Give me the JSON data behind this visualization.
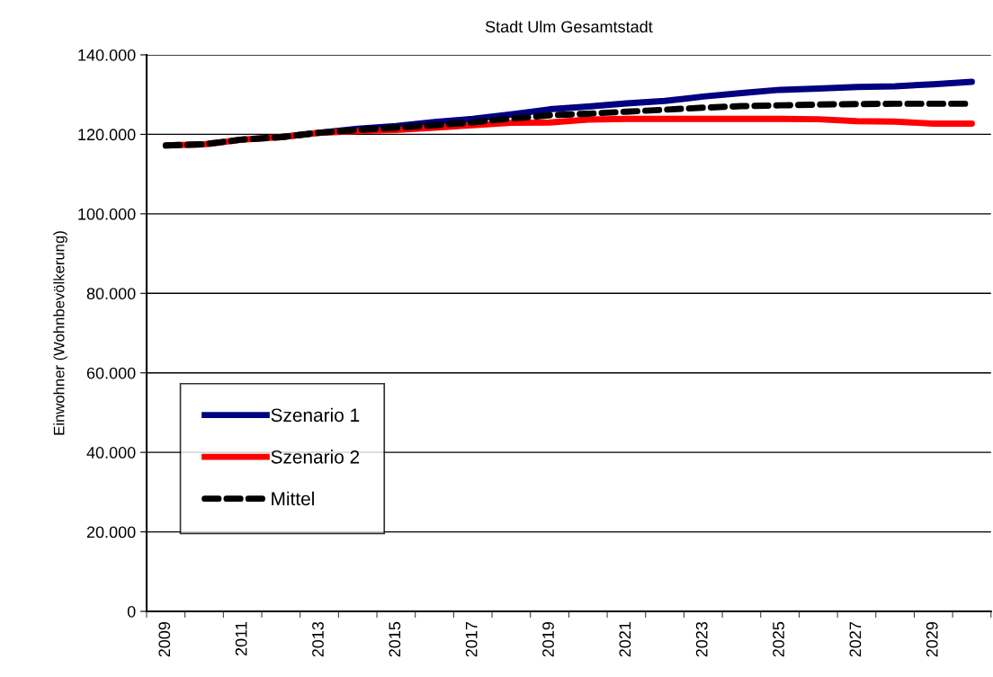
{
  "chart_data": {
    "type": "line",
    "title": "Stadt Ulm Gesamtstadt",
    "ylabel": "Einwohner (Wohnbevölkerung)",
    "categories": [
      "2009",
      null,
      "2011",
      null,
      "2013",
      null,
      "2015",
      null,
      "2017",
      null,
      "2019",
      null,
      "2021",
      null,
      "2023",
      null,
      "2025",
      null,
      "2027",
      null,
      "2029",
      null
    ],
    "series": [
      {
        "name": "Szenario 1",
        "color": "#000080",
        "line_style": "solid",
        "values": [
          null,
          null,
          null,
          119300,
          120400,
          121400,
          122100,
          123100,
          123900,
          125000,
          126300,
          127000,
          127800,
          128400,
          129500,
          130400,
          131200,
          131500,
          131900,
          132100,
          132600,
          133200
        ]
      },
      {
        "name": "Szenario 2",
        "color": "#ff0000",
        "line_style": "solid",
        "values": [
          117200,
          117500,
          118700,
          119300,
          120400,
          120800,
          121100,
          121700,
          122300,
          122900,
          123000,
          123700,
          123900,
          123900,
          123900,
          123900,
          123900,
          123800,
          123300,
          123200,
          122700,
          122700
        ]
      },
      {
        "name": "Mittel",
        "color": "#000000",
        "line_style": "dashed",
        "values": [
          117200,
          117500,
          118700,
          119300,
          120400,
          121100,
          121700,
          122300,
          123000,
          124000,
          124800,
          125200,
          125700,
          126200,
          126700,
          127100,
          127300,
          127500,
          127600,
          127700,
          127700,
          127700
        ]
      }
    ],
    "ylim": [
      0,
      140000
    ],
    "yticks": [
      {
        "value": 0,
        "label": "0"
      },
      {
        "value": 20000,
        "label": "20.000"
      },
      {
        "value": 40000,
        "label": "40.000"
      },
      {
        "value": 60000,
        "label": "60.000"
      },
      {
        "value": 80000,
        "label": "80.000"
      },
      {
        "value": 100000,
        "label": "100.000"
      },
      {
        "value": 120000,
        "label": "120.000"
      },
      {
        "value": 140000,
        "label": "140.000"
      }
    ],
    "grid": "y",
    "legend": "bottom left",
    "marker": "none"
  }
}
